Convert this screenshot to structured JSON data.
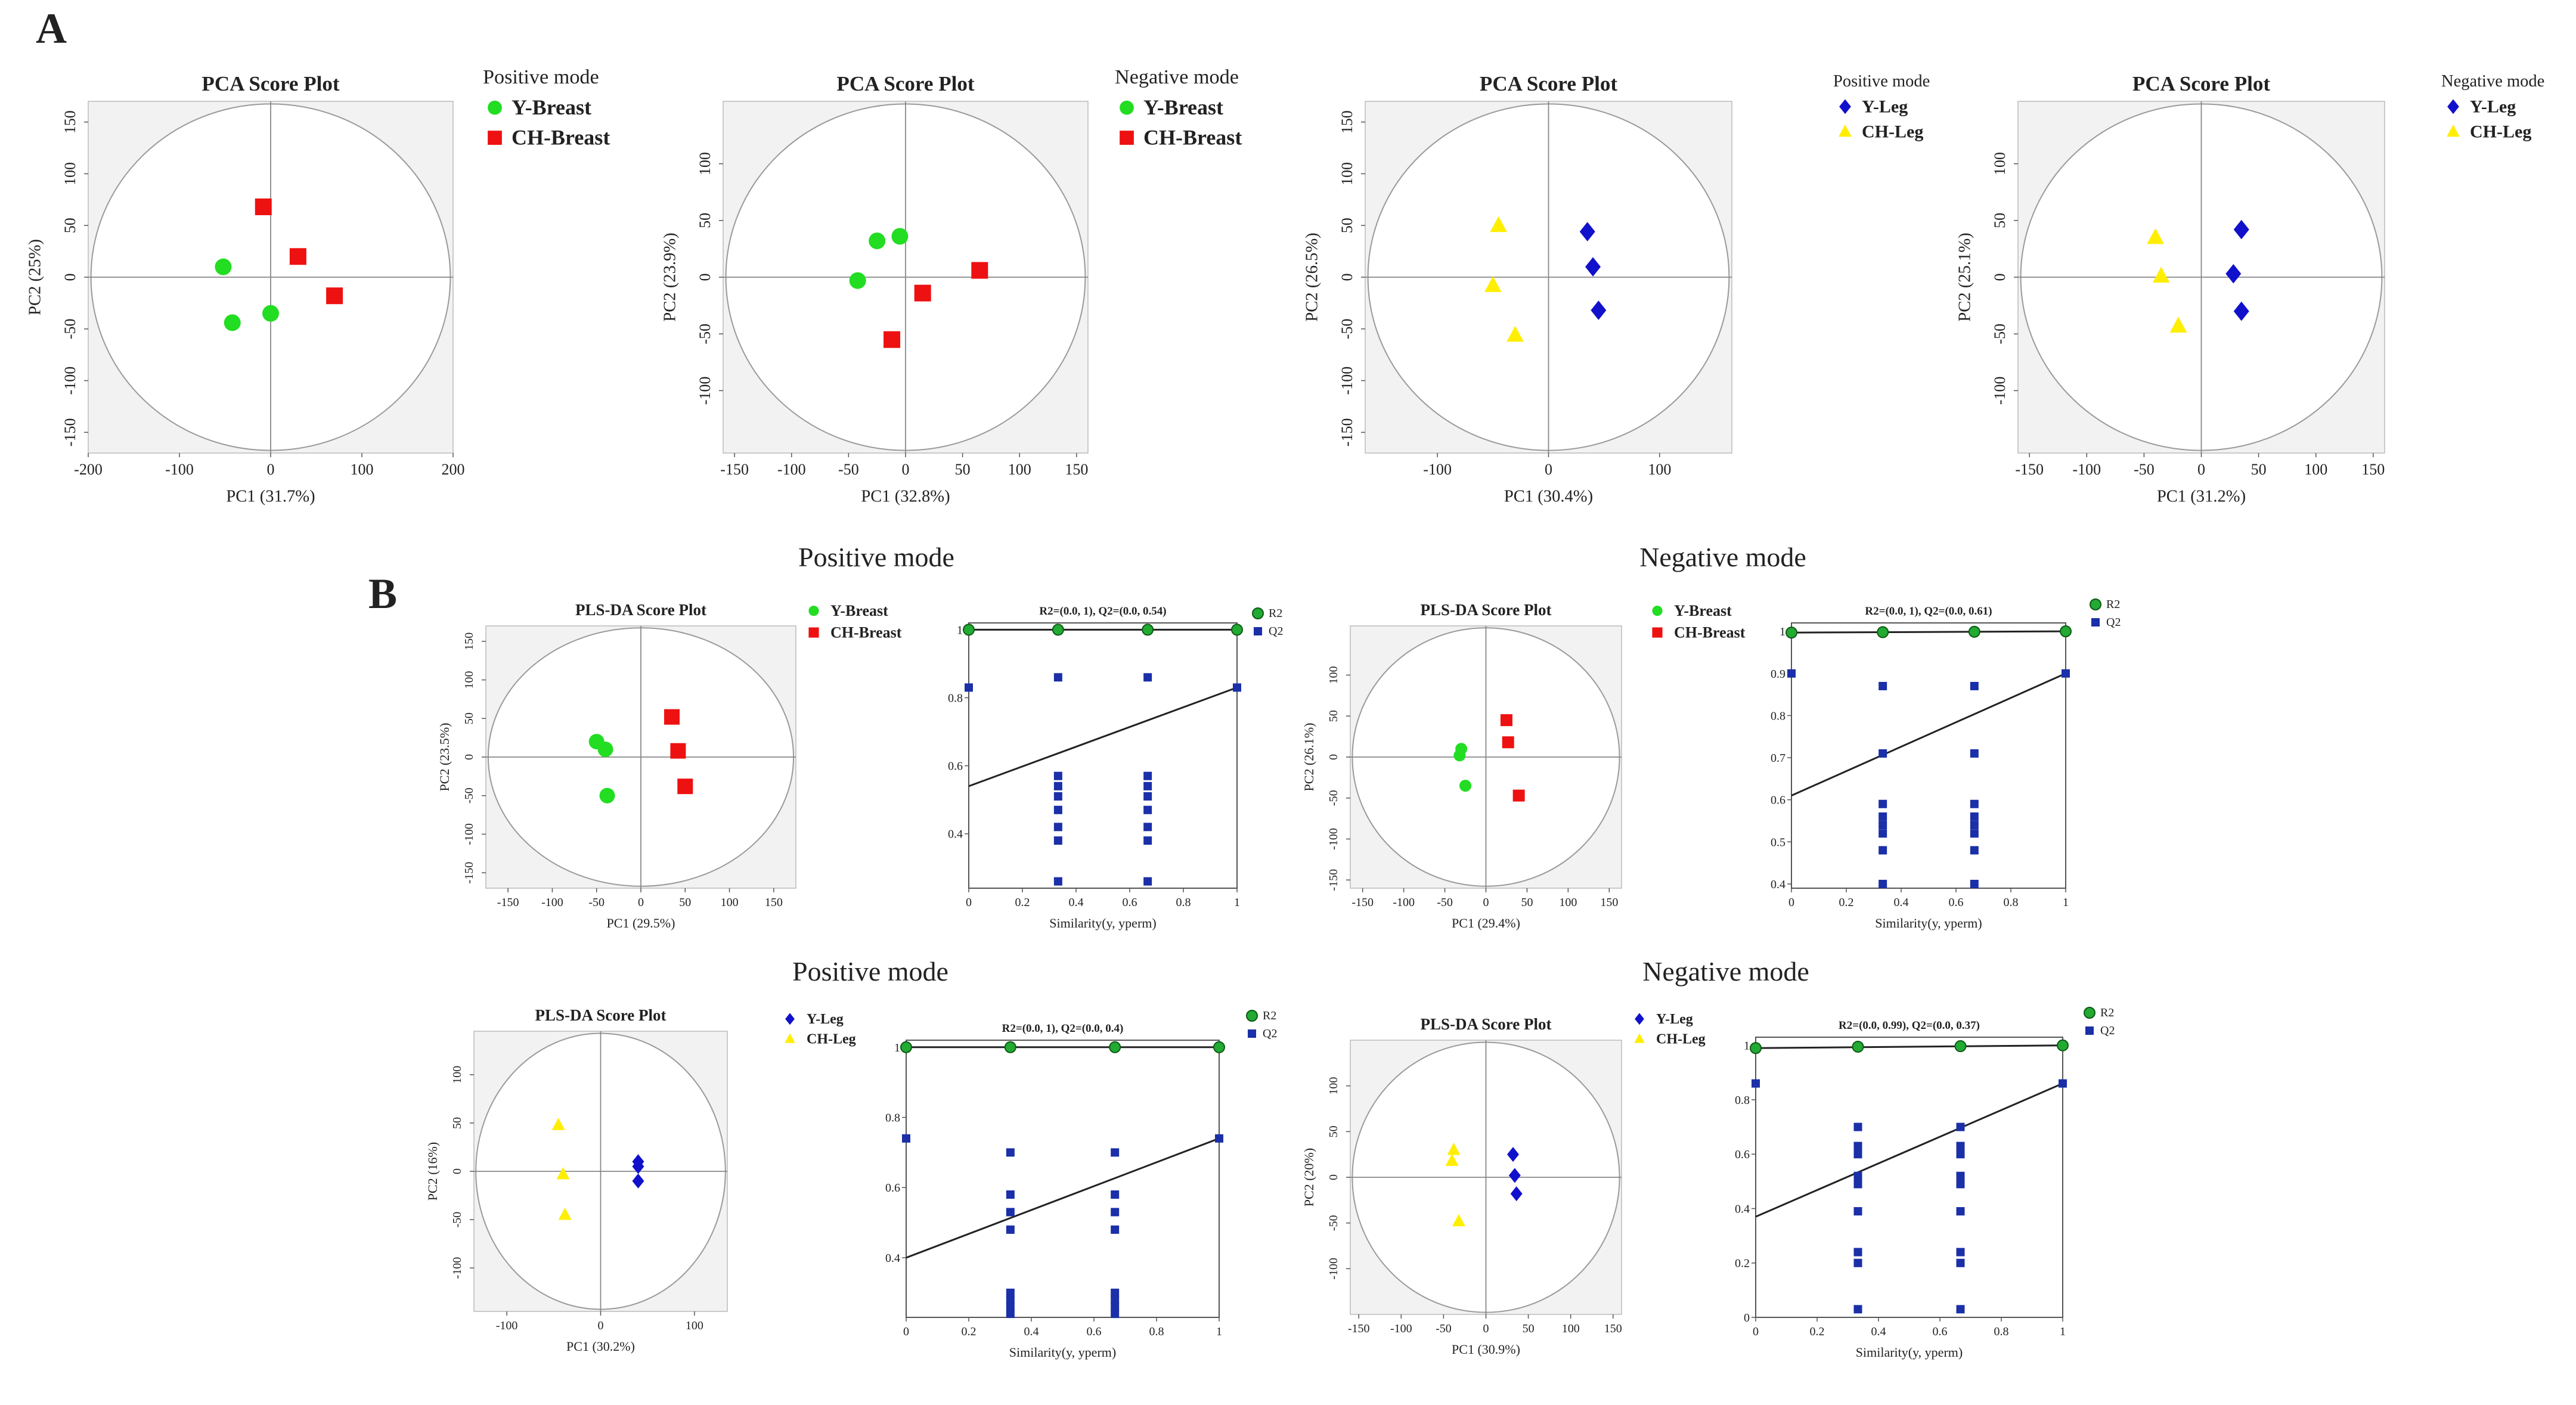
{
  "panel_labels": {
    "a": "A",
    "b": "B"
  },
  "section_titles": {
    "b_row1_left": "Positive mode",
    "b_row1_right": "Negative mode",
    "b_row2_left": "Positive mode",
    "b_row2_right": "Negative mode"
  },
  "colors": {
    "green": "#22dd22",
    "red": "#ee1111",
    "blue": "#1111cc",
    "yellow": "#ffee00",
    "q2_blue": "#1a2fa8",
    "r2_green": "#22aa33",
    "plot_bg": "#f2f2f2"
  },
  "chart_data": [
    {
      "id": "a1",
      "type": "scatter",
      "title": "PCA Score Plot",
      "xlabel": "PC1 (31.7%)",
      "ylabel": "PC2 (25%)",
      "xlim": [
        -200,
        200
      ],
      "ylim": [
        -170,
        170
      ],
      "xticks": [
        -200,
        -100,
        0,
        100,
        200
      ],
      "yticks": [
        -150,
        -100,
        -50,
        0,
        50,
        100,
        150
      ],
      "legend_title": "Positive mode",
      "series": [
        {
          "name": "Y-Breast",
          "marker": "circle",
          "color": "#22dd22",
          "points": [
            [
              -52,
              10
            ],
            [
              -42,
              -44
            ],
            [
              0,
              -35
            ]
          ]
        },
        {
          "name": "CH-Breast",
          "marker": "square",
          "color": "#ee1111",
          "points": [
            [
              -8,
              68
            ],
            [
              30,
              20
            ],
            [
              70,
              -18
            ]
          ]
        }
      ]
    },
    {
      "id": "a2",
      "type": "scatter",
      "title": "PCA Score Plot",
      "xlabel": "PC1 (32.8%)",
      "ylabel": "PC2 (23.9%)",
      "xlim": [
        -160,
        160
      ],
      "ylim": [
        -155,
        155
      ],
      "xticks": [
        -150,
        -100,
        -50,
        0,
        50,
        100,
        150
      ],
      "yticks": [
        -100,
        -50,
        0,
        50,
        100
      ],
      "legend_title": "Negative mode",
      "series": [
        {
          "name": "Y-Breast",
          "marker": "circle",
          "color": "#22dd22",
          "points": [
            [
              -25,
              32
            ],
            [
              -5,
              36
            ],
            [
              -42,
              -3
            ]
          ]
        },
        {
          "name": "CH-Breast",
          "marker": "square",
          "color": "#ee1111",
          "points": [
            [
              65,
              6
            ],
            [
              15,
              -14
            ],
            [
              -12,
              -55
            ]
          ]
        }
      ]
    },
    {
      "id": "a3",
      "type": "scatter",
      "title": "PCA Score Plot",
      "xlabel": "PC1 (30.4%)",
      "ylabel": "PC2 (26.5%)",
      "xlim": [
        -165,
        165
      ],
      "ylim": [
        -170,
        170
      ],
      "xticks": [
        -100,
        0,
        100
      ],
      "yticks": [
        -150,
        -100,
        -50,
        0,
        50,
        100,
        150
      ],
      "legend_title": "Positive mode",
      "series": [
        {
          "name": "Y-Leg",
          "marker": "diamond",
          "color": "#1111cc",
          "points": [
            [
              35,
              44
            ],
            [
              40,
              10
            ],
            [
              45,
              -32
            ]
          ]
        },
        {
          "name": "CH-Leg",
          "marker": "triangle",
          "color": "#ffee00",
          "points": [
            [
              -45,
              50
            ],
            [
              -50,
              -8
            ],
            [
              -30,
              -56
            ]
          ]
        }
      ]
    },
    {
      "id": "a4",
      "type": "scatter",
      "title": "PCA Score Plot",
      "xlabel": "PC1 (31.2%)",
      "ylabel": "PC2 (25.1%)",
      "xlim": [
        -160,
        160
      ],
      "ylim": [
        -155,
        155
      ],
      "xticks": [
        -150,
        -100,
        -50,
        0,
        50,
        100,
        150
      ],
      "yticks": [
        -100,
        -50,
        0,
        50,
        100
      ],
      "legend_title": "Negative mode",
      "series": [
        {
          "name": "Y-Leg",
          "marker": "diamond",
          "color": "#1111cc",
          "points": [
            [
              35,
              42
            ],
            [
              28,
              3
            ],
            [
              35,
              -30
            ]
          ]
        },
        {
          "name": "CH-Leg",
          "marker": "triangle",
          "color": "#ffee00",
          "points": [
            [
              -40,
              35
            ],
            [
              -35,
              1
            ],
            [
              -20,
              -43
            ]
          ]
        }
      ]
    },
    {
      "id": "b1",
      "type": "scatter",
      "title": "PLS-DA Score Plot",
      "xlabel": "PC1 (29.5%)",
      "ylabel": "PC2 (23.5%)",
      "xlim": [
        -175,
        175
      ],
      "ylim": [
        -170,
        170
      ],
      "xticks": [
        -150,
        -100,
        -50,
        0,
        50,
        100,
        150
      ],
      "yticks": [
        -150,
        -100,
        -50,
        0,
        50,
        100,
        150
      ],
      "series": [
        {
          "name": "Y-Breast",
          "marker": "circle",
          "color": "#22dd22",
          "points": [
            [
              -50,
              20
            ],
            [
              -40,
              10
            ],
            [
              -38,
              -50
            ]
          ]
        },
        {
          "name": "CH-Breast",
          "marker": "square",
          "color": "#ee1111",
          "points": [
            [
              35,
              52
            ],
            [
              42,
              8
            ],
            [
              50,
              -38
            ]
          ]
        }
      ]
    },
    {
      "id": "b2",
      "type": "scatter",
      "title": "R2=(0.0, 1), Q2=(0.0, 0.54)",
      "xlabel": "Similarity(y, yperm)",
      "ylabel": "",
      "xlim": [
        0,
        1
      ],
      "ylim": [
        0.24,
        1.02
      ],
      "xticks": [
        0,
        0.2,
        0.4,
        0.6,
        0.8,
        1.0
      ],
      "yticks": [
        0.4,
        0.6,
        0.8,
        1.0
      ],
      "r2_line": [
        [
          0,
          1.0
        ],
        [
          1,
          1.0
        ]
      ],
      "q2_line": [
        [
          0,
          0.54
        ],
        [
          1,
          0.83
        ]
      ],
      "series": [
        {
          "name": "R2",
          "marker": "circle",
          "color": "#22aa33",
          "points": [
            [
              0,
              1.0
            ],
            [
              0.333,
              1.0
            ],
            [
              0.667,
              1.0
            ],
            [
              1.0,
              1.0
            ]
          ]
        },
        {
          "name": "Q2",
          "marker": "square",
          "color": "#1a2fa8",
          "points": [
            [
              0,
              0.83
            ],
            [
              0.333,
              0.86
            ],
            [
              0.333,
              0.57
            ],
            [
              0.333,
              0.54
            ],
            [
              0.333,
              0.51
            ],
            [
              0.333,
              0.47
            ],
            [
              0.333,
              0.42
            ],
            [
              0.333,
              0.38
            ],
            [
              0.333,
              0.26
            ],
            [
              0.667,
              0.86
            ],
            [
              0.667,
              0.57
            ],
            [
              0.667,
              0.54
            ],
            [
              0.667,
              0.51
            ],
            [
              0.667,
              0.47
            ],
            [
              0.667,
              0.42
            ],
            [
              0.667,
              0.38
            ],
            [
              0.667,
              0.26
            ],
            [
              1.0,
              0.83
            ]
          ]
        }
      ]
    },
    {
      "id": "b3",
      "type": "scatter",
      "title": "PLS-DA Score Plot",
      "xlabel": "PC1 (29.4%)",
      "ylabel": "PC2 (26.1%)",
      "xlim": [
        -165,
        165
      ],
      "ylim": [
        -160,
        160
      ],
      "xticks": [
        -150,
        -100,
        -50,
        0,
        50,
        100,
        150
      ],
      "yticks": [
        -150,
        -100,
        -50,
        0,
        50,
        100
      ],
      "series": [
        {
          "name": "Y-Breast",
          "marker": "circle",
          "color": "#22dd22",
          "points": [
            [
              -30,
              10
            ],
            [
              -32,
              2
            ],
            [
              -25,
              -35
            ]
          ]
        },
        {
          "name": "CH-Breast",
          "marker": "square",
          "color": "#ee1111",
          "points": [
            [
              25,
              45
            ],
            [
              27,
              18
            ],
            [
              40,
              -47
            ]
          ]
        }
      ]
    },
    {
      "id": "b4",
      "type": "scatter",
      "title": "R2=(0.0, 1), Q2=(0.0, 0.61)",
      "xlabel": "Similarity(y, yperm)",
      "ylabel": "",
      "xlim": [
        0,
        1
      ],
      "ylim": [
        0.39,
        1.02
      ],
      "xticks": [
        0,
        0.2,
        0.4,
        0.6,
        0.8,
        1.0
      ],
      "yticks": [
        0.4,
        0.5,
        0.6,
        0.7,
        0.8,
        0.9,
        1.0
      ],
      "r2_line": [
        [
          0,
          0.997
        ],
        [
          1,
          1.0
        ]
      ],
      "q2_line": [
        [
          0,
          0.61
        ],
        [
          1,
          0.9
        ]
      ],
      "series": [
        {
          "name": "R2",
          "marker": "circle",
          "color": "#22aa33",
          "points": [
            [
              0,
              0.997
            ],
            [
              0.333,
              0.998
            ],
            [
              0.667,
              0.999
            ],
            [
              1.0,
              1.0
            ]
          ]
        },
        {
          "name": "Q2",
          "marker": "square",
          "color": "#1a2fa8",
          "points": [
            [
              0,
              0.9
            ],
            [
              0.333,
              0.87
            ],
            [
              0.333,
              0.71
            ],
            [
              0.333,
              0.59
            ],
            [
              0.333,
              0.56
            ],
            [
              0.333,
              0.54
            ],
            [
              0.333,
              0.52
            ],
            [
              0.333,
              0.48
            ],
            [
              0.333,
              0.4
            ],
            [
              0.667,
              0.87
            ],
            [
              0.667,
              0.71
            ],
            [
              0.667,
              0.59
            ],
            [
              0.667,
              0.56
            ],
            [
              0.667,
              0.54
            ],
            [
              0.667,
              0.52
            ],
            [
              0.667,
              0.48
            ],
            [
              0.667,
              0.4
            ],
            [
              1.0,
              0.9
            ]
          ]
        }
      ]
    },
    {
      "id": "b5",
      "type": "scatter",
      "title": "PLS-DA Score Plot",
      "xlabel": "PC1 (30.2%)",
      "ylabel": "PC2 (16%)",
      "xlim": [
        -135,
        135
      ],
      "ylim": [
        -145,
        145
      ],
      "xticks": [
        -100,
        0,
        100
      ],
      "yticks": [
        -100,
        -50,
        0,
        50,
        100
      ],
      "series": [
        {
          "name": "Y-Leg",
          "marker": "diamond",
          "color": "#1111cc",
          "points": [
            [
              40,
              10
            ],
            [
              40,
              5
            ],
            [
              40,
              -10
            ]
          ]
        },
        {
          "name": "CH-Leg",
          "marker": "triangle",
          "color": "#ffee00",
          "points": [
            [
              -45,
              48
            ],
            [
              -40,
              -3
            ],
            [
              -38,
              -45
            ]
          ]
        }
      ]
    },
    {
      "id": "b6",
      "type": "scatter",
      "title": "R2=(0.0, 1), Q2=(0.0, 0.4)",
      "xlabel": "Similarity(y, yperm)",
      "ylabel": "",
      "xlim": [
        0,
        1
      ],
      "ylim": [
        0.23,
        1.02
      ],
      "xticks": [
        0,
        0.2,
        0.4,
        0.6,
        0.8,
        1.0
      ],
      "yticks": [
        0.4,
        0.6,
        0.8,
        1.0
      ],
      "r2_line": [
        [
          0,
          1.0
        ],
        [
          1,
          1.0
        ]
      ],
      "q2_line": [
        [
          0,
          0.4
        ],
        [
          1,
          0.74
        ]
      ],
      "series": [
        {
          "name": "R2",
          "marker": "circle",
          "color": "#22aa33",
          "points": [
            [
              0,
              1.0
            ],
            [
              0.333,
              1.0
            ],
            [
              0.667,
              1.0
            ],
            [
              1.0,
              1.0
            ]
          ]
        },
        {
          "name": "Q2",
          "marker": "square",
          "color": "#1a2fa8",
          "points": [
            [
              0,
              0.74
            ],
            [
              0.333,
              0.7
            ],
            [
              0.333,
              0.58
            ],
            [
              0.333,
              0.53
            ],
            [
              0.333,
              0.48
            ],
            [
              0.333,
              0.3
            ],
            [
              0.333,
              0.28
            ],
            [
              0.333,
              0.26
            ],
            [
              0.333,
              0.24
            ],
            [
              0.667,
              0.7
            ],
            [
              0.667,
              0.58
            ],
            [
              0.667,
              0.53
            ],
            [
              0.667,
              0.48
            ],
            [
              0.667,
              0.3
            ],
            [
              0.667,
              0.28
            ],
            [
              0.667,
              0.26
            ],
            [
              0.667,
              0.24
            ],
            [
              1.0,
              0.74
            ]
          ]
        }
      ]
    },
    {
      "id": "b7",
      "type": "scatter",
      "title": "PLS-DA Score Plot",
      "xlabel": "PC1 (30.9%)",
      "ylabel": "PC2 (20%)",
      "xlim": [
        -160,
        160
      ],
      "ylim": [
        -150,
        150
      ],
      "xticks": [
        -150,
        -100,
        -50,
        0,
        50,
        100,
        150
      ],
      "yticks": [
        -100,
        -50,
        0,
        50,
        100
      ],
      "series": [
        {
          "name": "Y-Leg",
          "marker": "diamond",
          "color": "#1111cc",
          "points": [
            [
              32,
              25
            ],
            [
              34,
              2
            ],
            [
              36,
              -18
            ]
          ]
        },
        {
          "name": "CH-Leg",
          "marker": "triangle",
          "color": "#ffee00",
          "points": [
            [
              -38,
              30
            ],
            [
              -40,
              18
            ],
            [
              -32,
              -48
            ]
          ]
        }
      ]
    },
    {
      "id": "b8",
      "type": "scatter",
      "title": "R2=(0.0, 0.99), Q2=(0.0, 0.37)",
      "xlabel": "Similarity(y, yperm)",
      "ylabel": "",
      "xlim": [
        0,
        1
      ],
      "ylim": [
        0,
        1.03
      ],
      "xticks": [
        0,
        0.2,
        0.4,
        0.6,
        0.8,
        1.0
      ],
      "yticks": [
        0,
        0.2,
        0.4,
        0.6,
        0.8,
        1.0
      ],
      "r2_line": [
        [
          0,
          0.99
        ],
        [
          1,
          1.0
        ]
      ],
      "q2_line": [
        [
          0,
          0.37
        ],
        [
          1,
          0.86
        ]
      ],
      "series": [
        {
          "name": "R2",
          "marker": "circle",
          "color": "#22aa33",
          "points": [
            [
              0,
              0.99
            ],
            [
              0.333,
              0.995
            ],
            [
              0.667,
              0.997
            ],
            [
              1.0,
              1.0
            ]
          ]
        },
        {
          "name": "Q2",
          "marker": "square",
          "color": "#1a2fa8",
          "points": [
            [
              0,
              0.86
            ],
            [
              0.333,
              0.7
            ],
            [
              0.333,
              0.63
            ],
            [
              0.333,
              0.6
            ],
            [
              0.333,
              0.52
            ],
            [
              0.333,
              0.49
            ],
            [
              0.333,
              0.39
            ],
            [
              0.333,
              0.24
            ],
            [
              0.333,
              0.2
            ],
            [
              0.333,
              0.03
            ],
            [
              0.667,
              0.7
            ],
            [
              0.667,
              0.63
            ],
            [
              0.667,
              0.6
            ],
            [
              0.667,
              0.52
            ],
            [
              0.667,
              0.49
            ],
            [
              0.667,
              0.39
            ],
            [
              0.667,
              0.24
            ],
            [
              0.667,
              0.2
            ],
            [
              0.667,
              0.03
            ],
            [
              1.0,
              0.86
            ]
          ]
        }
      ]
    }
  ]
}
